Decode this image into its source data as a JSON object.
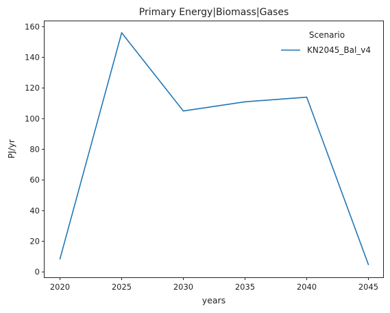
{
  "chart_data": {
    "type": "line",
    "title": "Primary Energy|Biomass|Gases",
    "xlabel": "years",
    "ylabel": "PJ/yr",
    "x": [
      2020,
      2025,
      2030,
      2035,
      2040,
      2045
    ],
    "x_ticks": [
      "2020",
      "2025",
      "2030",
      "2035",
      "2040",
      "2045"
    ],
    "y_ticks": [
      "0",
      "20",
      "40",
      "60",
      "80",
      "100",
      "120",
      "140",
      "160"
    ],
    "xlim": [
      2018.75,
      2046.25
    ],
    "ylim": [
      -3.5,
      163.5
    ],
    "grid": false,
    "legend": {
      "title": "Scenario",
      "placement": "top-right"
    },
    "series": [
      {
        "name": "KN2045_Bal_v4",
        "color": "#1f77b4",
        "values": [
          8.5,
          156,
          105,
          111,
          114,
          4.8
        ]
      }
    ]
  }
}
